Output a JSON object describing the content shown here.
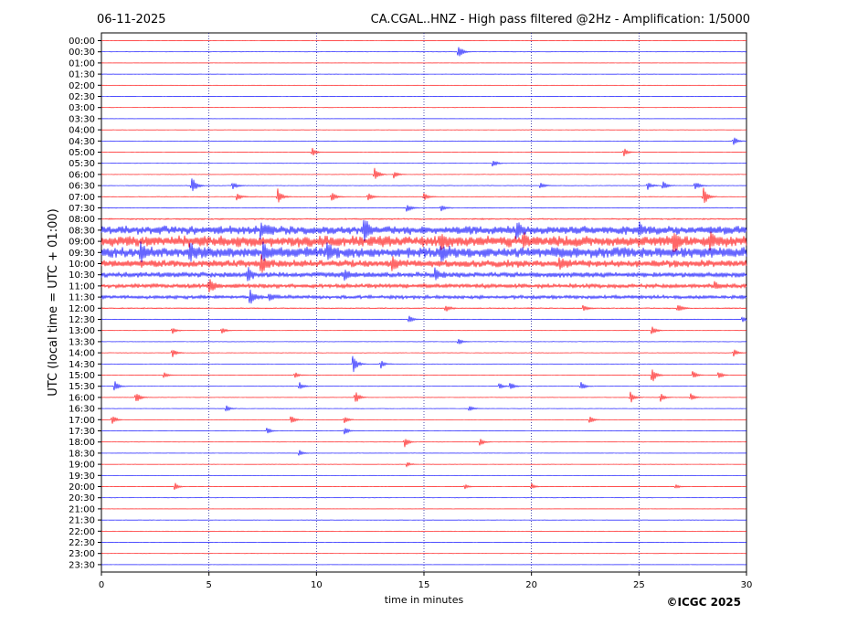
{
  "header": {
    "date": "06-11-2025",
    "title": "CA.CGAL..HNZ - High pass filtered @2Hz - Amplification: 1/5000"
  },
  "footer": {
    "copyright": "©ICGC 2025"
  },
  "chart_data": {
    "type": "line",
    "title": "CA.CGAL..HNZ - High pass filtered @2Hz - Amplification: 1/5000",
    "xlabel": "time in minutes",
    "ylabel": "UTC (local time = UTC + 01:00)",
    "xlim": [
      0,
      30
    ],
    "xticks": [
      0,
      5,
      10,
      15,
      20,
      25,
      30
    ],
    "grid": "vertical dotted at each 5 minutes",
    "colors": {
      "odd_trace": "#ff0000",
      "even_trace": "#0000ff",
      "grid": "#00008b"
    },
    "trace_labels": [
      "00:00",
      "00:30",
      "01:00",
      "01:30",
      "02:00",
      "02:30",
      "03:00",
      "03:30",
      "04:00",
      "04:30",
      "05:00",
      "05:30",
      "06:00",
      "06:30",
      "07:00",
      "07:30",
      "08:00",
      "08:30",
      "09:00",
      "09:30",
      "10:00",
      "10:30",
      "11:00",
      "11:30",
      "12:00",
      "12:30",
      "13:00",
      "13:30",
      "14:00",
      "14:30",
      "15:00",
      "15:30",
      "16:00",
      "16:30",
      "17:00",
      "17:30",
      "18:00",
      "18:30",
      "19:00",
      "19:30",
      "20:00",
      "20:30",
      "21:00",
      "21:30",
      "22:00",
      "22:30",
      "23:00",
      "23:30"
    ],
    "noise_level": [
      0.1,
      0.1,
      0.1,
      0.1,
      0.1,
      0.1,
      0.1,
      0.1,
      0.1,
      0.1,
      0.1,
      0.1,
      0.2,
      0.25,
      0.3,
      0.35,
      0.6,
      3.5,
      4.5,
      4.5,
      3.0,
      2.2,
      1.8,
      1.5,
      0.5,
      0.3,
      0.2,
      0.2,
      0.2,
      0.2,
      0.15,
      0.15,
      0.15,
      0.15,
      0.12,
      0.12,
      0.12,
      0.12,
      0.1,
      0.1,
      0.1,
      0.1,
      0.1,
      0.1,
      0.1,
      0.1,
      0.1,
      0.1
    ],
    "events": [
      {
        "row": 1,
        "t": 16.6,
        "amp": 9
      },
      {
        "row": 10,
        "t": 9.8,
        "amp": 5
      },
      {
        "row": 10,
        "t": 24.3,
        "amp": 5
      },
      {
        "row": 11,
        "t": 18.2,
        "amp": 5
      },
      {
        "row": 9,
        "t": 29.4,
        "amp": 6
      },
      {
        "row": 12,
        "t": 12.7,
        "amp": 9
      },
      {
        "row": 12,
        "t": 13.6,
        "amp": 5
      },
      {
        "row": 13,
        "t": 4.2,
        "amp": 12
      },
      {
        "row": 13,
        "t": 6.1,
        "amp": 5
      },
      {
        "row": 13,
        "t": 20.4,
        "amp": 4
      },
      {
        "row": 13,
        "t": 25.4,
        "amp": 5
      },
      {
        "row": 13,
        "t": 26.1,
        "amp": 6
      },
      {
        "row": 13,
        "t": 27.6,
        "amp": 6
      },
      {
        "row": 14,
        "t": 6.3,
        "amp": 5
      },
      {
        "row": 14,
        "t": 8.2,
        "amp": 10
      },
      {
        "row": 14,
        "t": 10.7,
        "amp": 6
      },
      {
        "row": 14,
        "t": 12.4,
        "amp": 5
      },
      {
        "row": 14,
        "t": 15.0,
        "amp": 5
      },
      {
        "row": 14,
        "t": 28.0,
        "amp": 12
      },
      {
        "row": 15,
        "t": 14.2,
        "amp": 5
      },
      {
        "row": 15,
        "t": 15.8,
        "amp": 4
      },
      {
        "row": 17,
        "t": 7.4,
        "amp": 9
      },
      {
        "row": 17,
        "t": 12.2,
        "amp": 15
      },
      {
        "row": 17,
        "t": 19.3,
        "amp": 10
      },
      {
        "row": 17,
        "t": 25.0,
        "amp": 6
      },
      {
        "row": 18,
        "t": 15.8,
        "amp": 8
      },
      {
        "row": 18,
        "t": 19.6,
        "amp": 6
      },
      {
        "row": 18,
        "t": 26.6,
        "amp": 12
      },
      {
        "row": 18,
        "t": 28.3,
        "amp": 9
      },
      {
        "row": 19,
        "t": 1.8,
        "amp": 8
      },
      {
        "row": 19,
        "t": 4.1,
        "amp": 8
      },
      {
        "row": 19,
        "t": 7.5,
        "amp": 12
      },
      {
        "row": 19,
        "t": 10.5,
        "amp": 8
      },
      {
        "row": 19,
        "t": 15.8,
        "amp": 8
      },
      {
        "row": 20,
        "t": 7.4,
        "amp": 10
      },
      {
        "row": 20,
        "t": 13.5,
        "amp": 7
      },
      {
        "row": 20,
        "t": 21.3,
        "amp": 6
      },
      {
        "row": 21,
        "t": 6.8,
        "amp": 8
      },
      {
        "row": 21,
        "t": 11.3,
        "amp": 7
      },
      {
        "row": 21,
        "t": 15.5,
        "amp": 6
      },
      {
        "row": 22,
        "t": 5.0,
        "amp": 11
      },
      {
        "row": 22,
        "t": 28.5,
        "amp": 5
      },
      {
        "row": 23,
        "t": 6.9,
        "amp": 9
      },
      {
        "row": 23,
        "t": 7.8,
        "amp": 5
      },
      {
        "row": 24,
        "t": 16.0,
        "amp": 4
      },
      {
        "row": 24,
        "t": 22.4,
        "amp": 4
      },
      {
        "row": 24,
        "t": 26.8,
        "amp": 5
      },
      {
        "row": 25,
        "t": 14.3,
        "amp": 5
      },
      {
        "row": 25,
        "t": 29.8,
        "amp": 4
      },
      {
        "row": 26,
        "t": 3.3,
        "amp": 4
      },
      {
        "row": 26,
        "t": 5.6,
        "amp": 4
      },
      {
        "row": 26,
        "t": 25.6,
        "amp": 6
      },
      {
        "row": 27,
        "t": 16.6,
        "amp": 4
      },
      {
        "row": 28,
        "t": 3.3,
        "amp": 5
      },
      {
        "row": 28,
        "t": 29.4,
        "amp": 5
      },
      {
        "row": 29,
        "t": 11.7,
        "amp": 12
      },
      {
        "row": 29,
        "t": 13.0,
        "amp": 5
      },
      {
        "row": 30,
        "t": 2.9,
        "amp": 4
      },
      {
        "row": 30,
        "t": 9.0,
        "amp": 4
      },
      {
        "row": 30,
        "t": 25.6,
        "amp": 10
      },
      {
        "row": 30,
        "t": 27.5,
        "amp": 5
      },
      {
        "row": 30,
        "t": 28.7,
        "amp": 5
      },
      {
        "row": 31,
        "t": 0.6,
        "amp": 7
      },
      {
        "row": 31,
        "t": 9.2,
        "amp": 5
      },
      {
        "row": 31,
        "t": 18.5,
        "amp": 4
      },
      {
        "row": 31,
        "t": 19.0,
        "amp": 5
      },
      {
        "row": 31,
        "t": 22.3,
        "amp": 5
      },
      {
        "row": 32,
        "t": 1.6,
        "amp": 7
      },
      {
        "row": 32,
        "t": 11.8,
        "amp": 8
      },
      {
        "row": 32,
        "t": 24.6,
        "amp": 7
      },
      {
        "row": 32,
        "t": 26.0,
        "amp": 5
      },
      {
        "row": 32,
        "t": 27.4,
        "amp": 5
      },
      {
        "row": 33,
        "t": 5.8,
        "amp": 4
      },
      {
        "row": 33,
        "t": 17.1,
        "amp": 4
      },
      {
        "row": 34,
        "t": 0.5,
        "amp": 6
      },
      {
        "row": 34,
        "t": 8.8,
        "amp": 6
      },
      {
        "row": 34,
        "t": 11.3,
        "amp": 5
      },
      {
        "row": 34,
        "t": 22.7,
        "amp": 5
      },
      {
        "row": 35,
        "t": 7.7,
        "amp": 4
      },
      {
        "row": 35,
        "t": 11.3,
        "amp": 5
      },
      {
        "row": 36,
        "t": 14.1,
        "amp": 6
      },
      {
        "row": 36,
        "t": 17.6,
        "amp": 5
      },
      {
        "row": 37,
        "t": 9.2,
        "amp": 4
      },
      {
        "row": 38,
        "t": 14.2,
        "amp": 3
      },
      {
        "row": 40,
        "t": 3.4,
        "amp": 5
      },
      {
        "row": 40,
        "t": 16.9,
        "amp": 3
      },
      {
        "row": 40,
        "t": 20.0,
        "amp": 4
      },
      {
        "row": 40,
        "t": 26.7,
        "amp": 3
      }
    ]
  }
}
